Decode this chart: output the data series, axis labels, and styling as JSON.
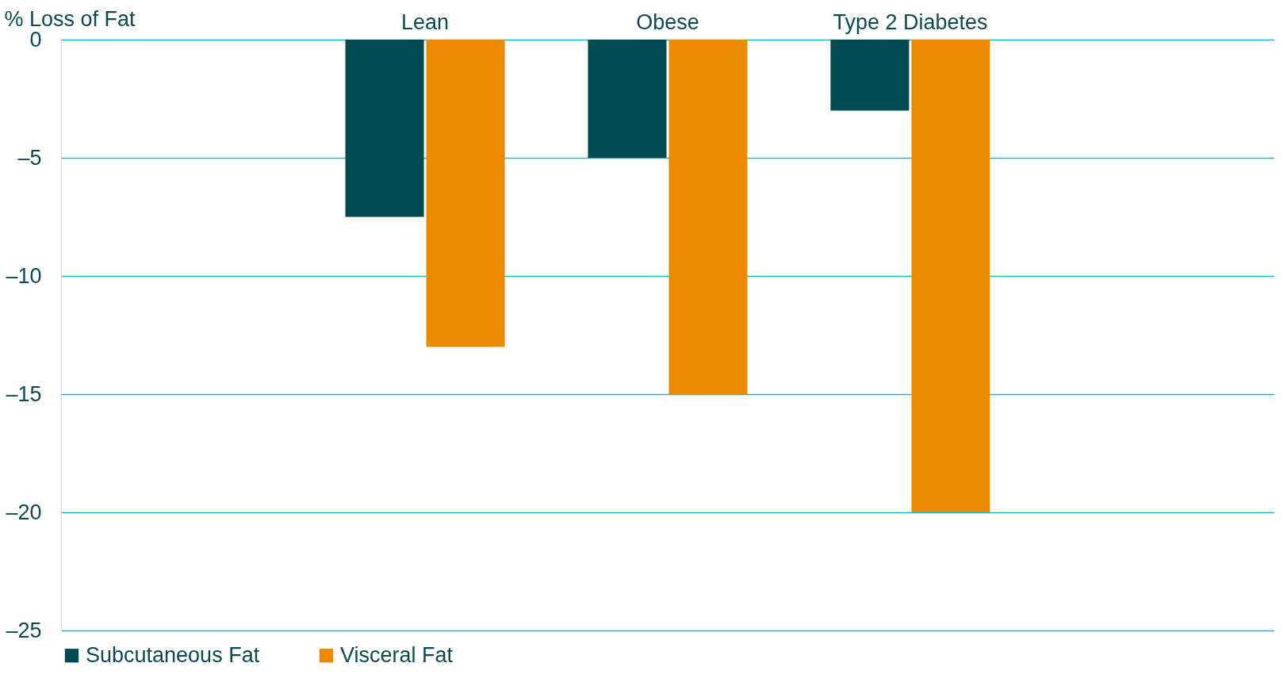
{
  "chart_data": {
    "type": "bar",
    "ylabel": "% Loss of Fat",
    "categories": [
      null,
      "Lean",
      "Obese",
      "Type 2 Diabetes",
      null
    ],
    "series": [
      {
        "name": "Subcutaneous Fat",
        "color": "#004a52",
        "values": [
          null,
          -7.5,
          -5,
          -3,
          null
        ]
      },
      {
        "name": "Visceral Fat",
        "color": "#ec8b00",
        "values": [
          null,
          -13,
          -15,
          -20,
          null
        ]
      }
    ],
    "ylim": [
      -25,
      0
    ],
    "yticks": [
      0,
      {
        "value": -5,
        "label": "–5"
      },
      {
        "value": -10,
        "label": "–10"
      },
      {
        "value": -15,
        "label": "–15"
      },
      {
        "value": -20,
        "label": "–20"
      },
      {
        "value": -25,
        "label": "–25"
      }
    ],
    "grid": "y",
    "legend": "bottom"
  }
}
